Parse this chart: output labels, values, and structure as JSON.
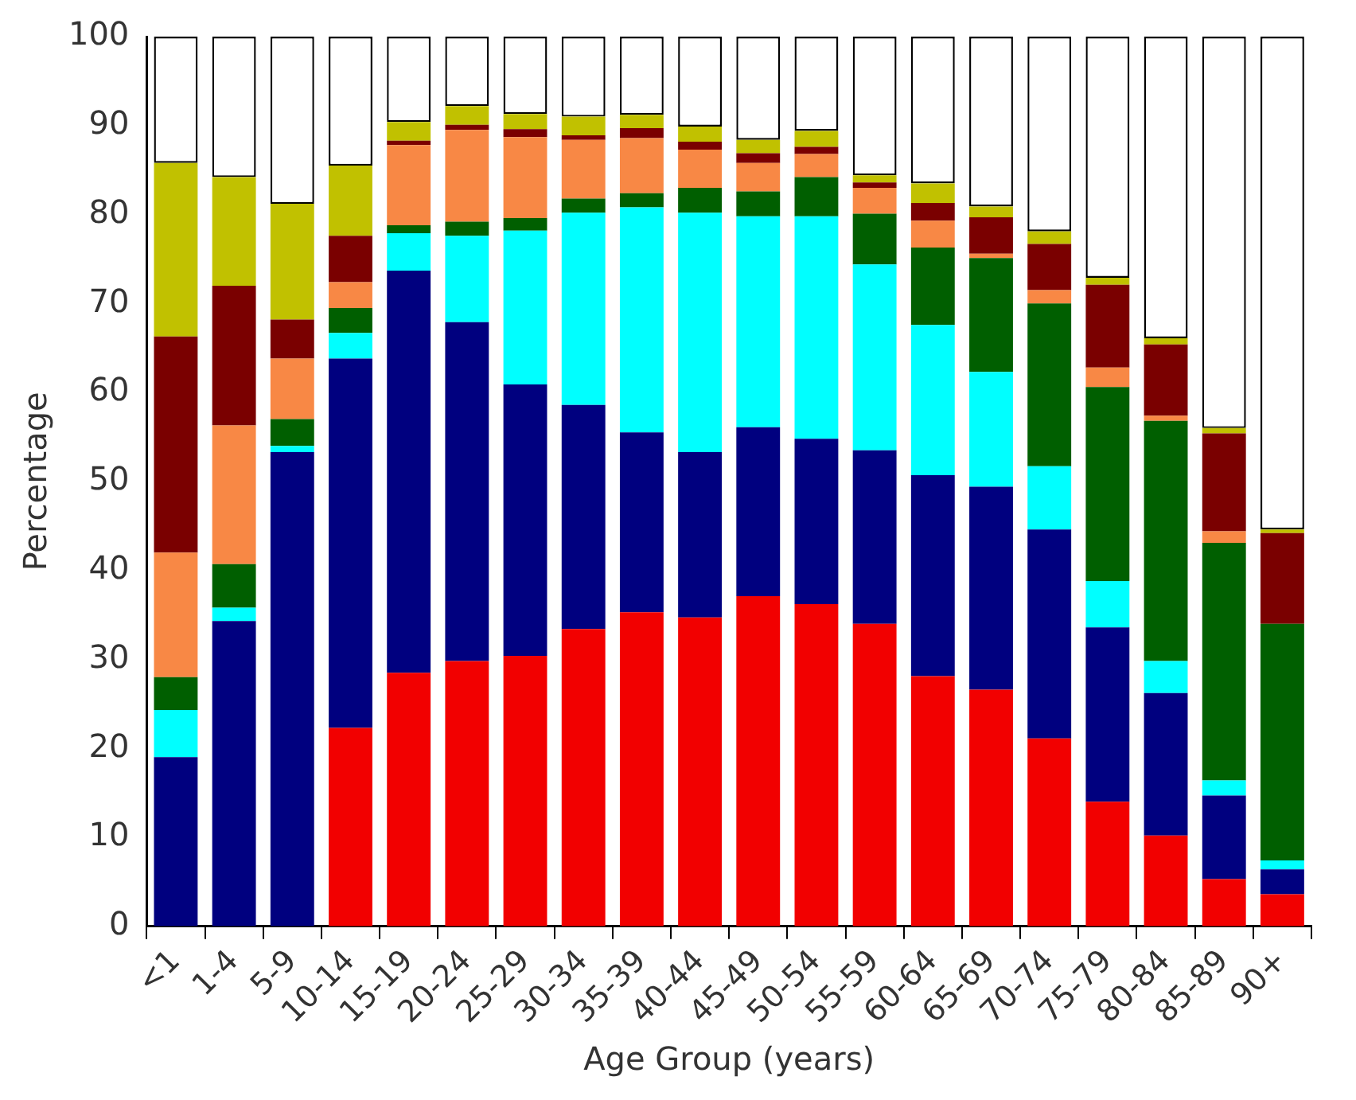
{
  "chart_data": {
    "type": "bar",
    "stacked": true,
    "xlabel": "Age Group (years)",
    "ylabel": "Percentage",
    "categories": [
      "<1",
      "1-4",
      "5-9",
      "10-14",
      "15-19",
      "20-24",
      "25-29",
      "30-34",
      "35-39",
      "40-44",
      "45-49",
      "50-54",
      "55-59",
      "60-64",
      "65-69",
      "70-74",
      "75-79",
      "80-84",
      "85-89",
      "90+"
    ],
    "series": [
      {
        "color": "#f20000",
        "values": [
          0,
          0,
          0,
          22.3,
          28.5,
          29.8,
          30.4,
          33.4,
          35.3,
          34.7,
          37.1,
          36.2,
          34.0,
          28.1,
          26.6,
          21.1,
          14.0,
          10.2,
          5.3,
          3.6
        ]
      },
      {
        "color": "#00007f",
        "values": [
          19.0,
          34.3,
          53.3,
          41.5,
          45.2,
          38.1,
          30.5,
          25.2,
          20.2,
          18.6,
          19.0,
          18.6,
          19.5,
          22.6,
          22.8,
          23.5,
          19.6,
          16.0,
          9.4,
          2.8
        ]
      },
      {
        "color": "#00ffff",
        "values": [
          5.3,
          1.5,
          0.7,
          2.9,
          4.2,
          9.7,
          17.3,
          21.6,
          25.3,
          26.9,
          23.7,
          25.0,
          20.9,
          16.9,
          12.9,
          7.1,
          5.2,
          3.6,
          1.7,
          1.0
        ]
      },
      {
        "color": "#005f00",
        "values": [
          3.7,
          4.9,
          3.0,
          2.8,
          0.9,
          1.6,
          1.4,
          1.6,
          1.6,
          2.8,
          2.8,
          4.4,
          5.7,
          8.7,
          12.8,
          18.3,
          21.8,
          27.0,
          26.7,
          26.6
        ]
      },
      {
        "color": "#f88845",
        "values": [
          14.0,
          15.6,
          6.8,
          2.9,
          9.0,
          10.3,
          9.1,
          6.6,
          6.2,
          4.3,
          3.2,
          2.6,
          2.9,
          3.0,
          0.5,
          1.5,
          2.2,
          0.6,
          1.3,
          0
        ]
      },
      {
        "color": "#7a0000",
        "values": [
          24.3,
          15.7,
          4.4,
          5.2,
          0.5,
          0.6,
          0.9,
          0.5,
          1.1,
          0.9,
          1.1,
          0.8,
          0.6,
          2.0,
          4.1,
          5.2,
          9.3,
          8.0,
          11.0,
          10.2
        ]
      },
      {
        "color": "#c1c100",
        "values": [
          19.5,
          12.2,
          13.0,
          7.9,
          2.1,
          2.1,
          1.7,
          2.1,
          1.5,
          1.7,
          1.5,
          1.8,
          0.8,
          2.2,
          1.2,
          1.4,
          0.8,
          0.7,
          0.6,
          0.4
        ]
      },
      {
        "color": "#ffffff",
        "values": [
          14.2,
          15.8,
          18.8,
          14.5,
          9.6,
          7.8,
          8.7,
          9.0,
          8.8,
          10.1,
          11.6,
          10.6,
          15.6,
          16.5,
          19.1,
          21.9,
          27.1,
          33.9,
          44.0,
          55.4
        ]
      }
    ],
    "ylim": [
      0,
      100
    ],
    "yticks": [
      0,
      10,
      20,
      30,
      40,
      50,
      60,
      70,
      80,
      90,
      100
    ],
    "grid": false,
    "legend": false
  }
}
